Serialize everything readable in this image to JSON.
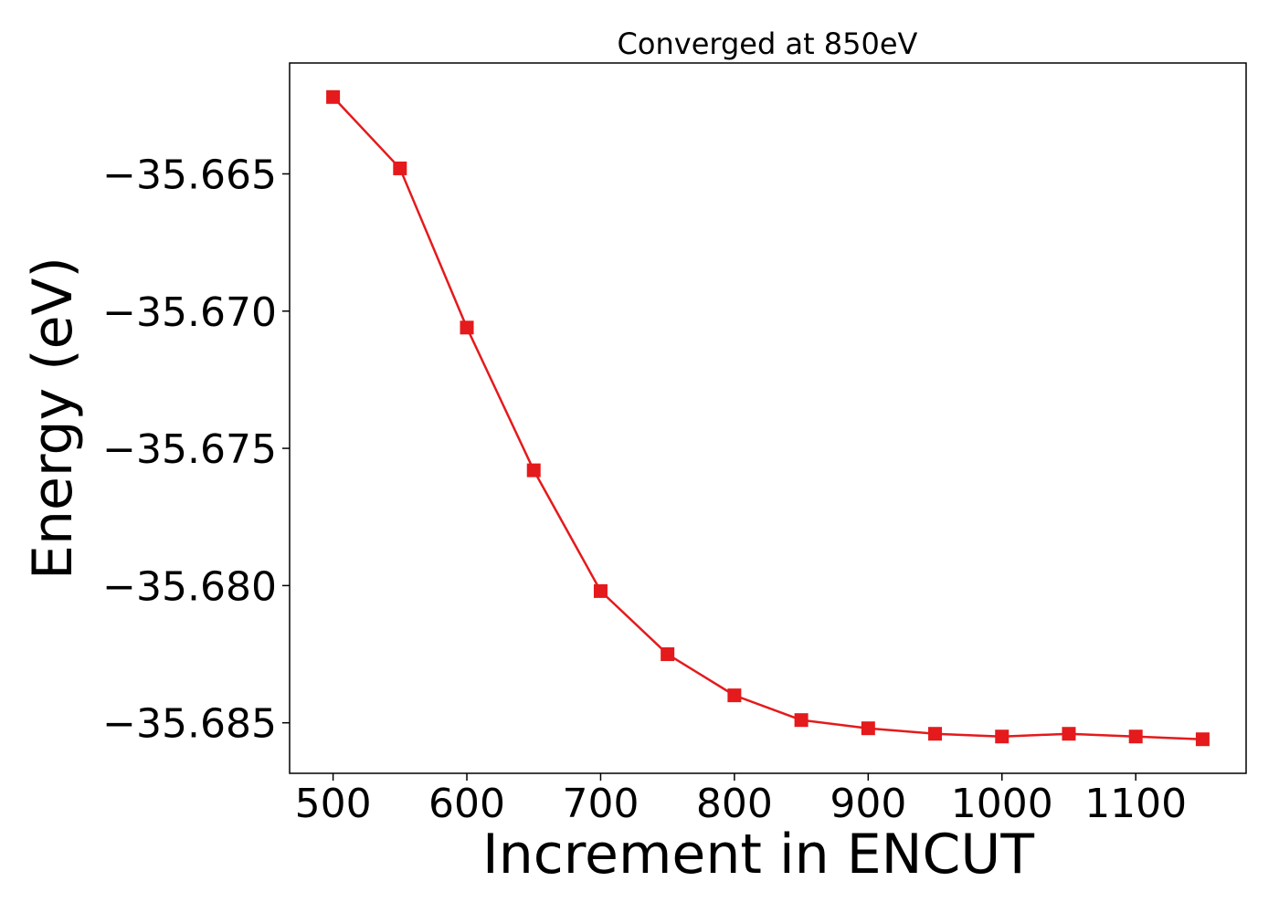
{
  "chart_data": {
    "type": "line",
    "title": "Converged at 850eV",
    "xlabel": "Increment in ENCUT",
    "ylabel": "Energy (eV)",
    "x": [
      500,
      550,
      600,
      650,
      700,
      750,
      800,
      850,
      900,
      950,
      1000,
      1050,
      1100,
      1150
    ],
    "series": [
      {
        "values": [
          -35.6622,
          -35.6648,
          -35.6706,
          -35.6758,
          -35.6802,
          -35.6825,
          -35.684,
          -35.6849,
          -35.6852,
          -35.6854,
          -35.6855,
          -35.6854,
          -35.6855,
          -35.6856
        ],
        "color": "#e41a1c",
        "marker": "square"
      }
    ],
    "xlim": [
      467.5,
      1182.5
    ],
    "ylim": [
      -35.68684,
      -35.66096
    ],
    "xticks": [
      500,
      600,
      700,
      800,
      900,
      1000,
      1100
    ],
    "xtick_labels": [
      "500",
      "600",
      "700",
      "800",
      "900",
      "1000",
      "1100"
    ],
    "yticks": [
      -35.665,
      -35.67,
      -35.675,
      -35.68,
      -35.685
    ],
    "ytick_labels": [
      "−35.665",
      "−35.670",
      "−35.675",
      "−35.680",
      "−35.685"
    ],
    "grid": false,
    "legend": "none"
  }
}
